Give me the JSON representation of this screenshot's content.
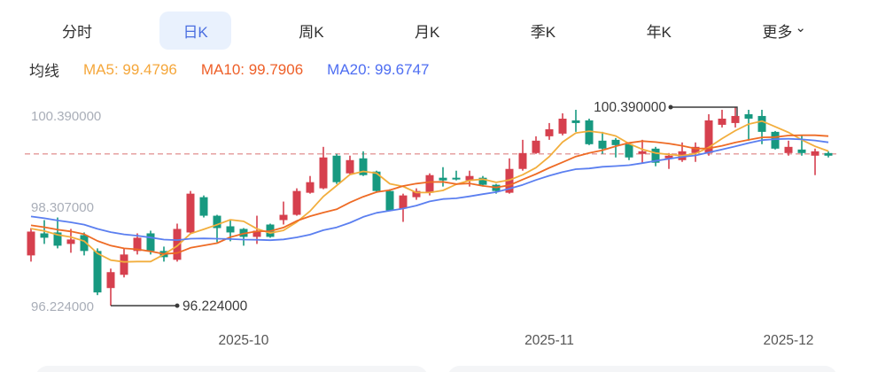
{
  "tabs": {
    "items": [
      {
        "label": "分时",
        "active": false
      },
      {
        "label": "日K",
        "active": true
      },
      {
        "label": "周K",
        "active": false
      },
      {
        "label": "月K",
        "active": false
      },
      {
        "label": "季K",
        "active": false
      },
      {
        "label": "年K",
        "active": false
      },
      {
        "label": "更多",
        "active": false
      }
    ],
    "active_bg": "#e9f1fd",
    "active_color": "#4a6ee0"
  },
  "icons": {
    "chevron_down": "⌄"
  },
  "legend": {
    "title": "均线",
    "ma5": {
      "label": "MA5: 99.4796",
      "color": "#f5a73b"
    },
    "ma10": {
      "label": "MA10: 99.7906",
      "color": "#ee5f28"
    },
    "ma20": {
      "label": "MA20: 99.6747",
      "color": "#4e6ef2"
    }
  },
  "chart_data": {
    "type": "candlestick",
    "up_color": "#d6404e",
    "down_color": "#179980",
    "axis_label_color": "#a9aeb8",
    "x_label_color": "#555555",
    "annotation_color": "#3a3a3a",
    "grid": false,
    "ylim": [
      95.9,
      100.75
    ],
    "y_ticks": [
      {
        "label": "100.390000",
        "value": 100.39
      },
      {
        "label": "98.307000",
        "value": 98.307
      },
      {
        "label": "96.224000",
        "value": 96.224
      }
    ],
    "x_ticks": [
      {
        "label": "2025-10",
        "index": 16
      },
      {
        "label": "2025-11",
        "index": 39
      },
      {
        "label": "2025-12",
        "index": 57
      }
    ],
    "reference_line": {
      "value": 99.409,
      "style": "dashed",
      "color": "#e6a0a0"
    },
    "annotations": [
      {
        "type": "high",
        "label": "100.390000",
        "value": 100.39,
        "candle_index": 53
      },
      {
        "type": "low",
        "label": "96.224000",
        "value": 96.224,
        "candle_index": 6
      }
    ],
    "ma": {
      "windows": [
        5,
        10,
        20
      ],
      "colors": {
        "ma5": "#f2ae3d",
        "ma10": "#ee6b25",
        "ma20": "#5b7ff0"
      },
      "pre_closes": [
        98.45,
        98.42,
        98.4,
        98.38,
        98.35,
        98.3,
        98.28,
        98.25,
        98.2,
        98.15,
        98.1,
        98.05,
        98.0,
        97.98,
        97.95,
        97.92,
        97.9,
        97.88,
        97.85,
        97.8
      ]
    },
    "candles": [
      [
        97.279,
        97.853,
        97.149,
        97.779
      ],
      [
        97.742,
        98.02,
        97.52,
        97.65
      ],
      [
        97.761,
        98.075,
        97.427,
        97.483
      ],
      [
        97.52,
        97.835,
        97.335,
        97.613
      ],
      [
        97.705,
        97.761,
        97.279,
        97.372
      ],
      [
        97.372,
        97.427,
        96.446,
        96.502
      ],
      [
        96.594,
        97.002,
        96.224,
        96.928
      ],
      [
        96.872,
        97.427,
        96.817,
        97.298
      ],
      [
        97.372,
        97.742,
        97.298,
        97.65
      ],
      [
        97.742,
        97.798,
        97.298,
        97.372
      ],
      [
        97.372,
        97.464,
        97.149,
        97.242
      ],
      [
        97.187,
        97.946,
        97.149,
        97.835
      ],
      [
        97.761,
        98.631,
        97.742,
        98.575
      ],
      [
        98.501,
        98.538,
        98.075,
        98.112
      ],
      [
        98.112,
        98.131,
        97.557,
        97.853
      ],
      [
        97.89,
        98.02,
        97.576,
        97.761
      ],
      [
        97.835,
        97.853,
        97.483,
        97.668
      ],
      [
        97.668,
        98.112,
        97.52,
        97.798
      ],
      [
        97.927,
        97.946,
        97.65,
        97.668
      ],
      [
        98.02,
        98.409,
        97.927,
        98.131
      ],
      [
        98.131,
        98.687,
        98.112,
        98.631
      ],
      [
        98.594,
        98.946,
        98.575,
        98.816
      ],
      [
        98.687,
        99.557,
        98.668,
        99.335
      ],
      [
        99.372,
        99.409,
        98.779,
        98.816
      ],
      [
        99.001,
        99.372,
        98.964,
        99.279
      ],
      [
        99.316,
        99.464,
        98.946,
        98.964
      ],
      [
        99.038,
        99.057,
        98.594,
        98.631
      ],
      [
        98.631,
        98.668,
        98.205,
        98.224
      ],
      [
        98.261,
        98.575,
        97.983,
        98.538
      ],
      [
        98.501,
        98.687,
        98.446,
        98.631
      ],
      [
        98.594,
        99.001,
        98.538,
        98.964
      ],
      [
        98.909,
        99.131,
        98.724,
        98.853
      ],
      [
        98.909,
        99.057,
        98.853,
        98.872
      ],
      [
        98.853,
        99.057,
        98.724,
        98.946
      ],
      [
        98.909,
        98.946,
        98.724,
        98.761
      ],
      [
        98.761,
        98.779,
        98.575,
        98.631
      ],
      [
        98.594,
        99.316,
        98.575,
        99.094
      ],
      [
        99.094,
        99.705,
        99.057,
        99.427
      ],
      [
        99.427,
        99.779,
        99.409,
        99.687
      ],
      [
        99.779,
        100.057,
        99.705,
        99.927
      ],
      [
        99.835,
        100.261,
        99.798,
        100.149
      ],
      [
        100.113,
        100.335,
        99.872,
        100.057
      ],
      [
        100.113,
        100.149,
        99.594,
        99.613
      ],
      [
        99.687,
        99.872,
        99.409,
        99.52
      ],
      [
        99.705,
        99.742,
        99.335,
        99.594
      ],
      [
        99.613,
        99.65,
        99.279,
        99.335
      ],
      [
        99.409,
        99.705,
        99.224,
        99.464
      ],
      [
        99.52,
        99.557,
        99.15,
        99.224
      ],
      [
        99.316,
        99.427,
        99.094,
        99.372
      ],
      [
        99.279,
        99.65,
        99.242,
        99.464
      ],
      [
        99.427,
        99.65,
        99.242,
        99.557
      ],
      [
        99.427,
        100.242,
        99.372,
        100.113
      ],
      [
        100.02,
        100.335,
        99.964,
        100.149
      ],
      [
        100.057,
        100.39,
        99.964,
        100.205
      ],
      [
        100.242,
        100.335,
        99.687,
        100.149
      ],
      [
        100.205,
        100.335,
        99.613,
        99.872
      ],
      [
        99.872,
        99.89,
        99.501,
        99.52
      ],
      [
        99.427,
        99.687,
        99.372,
        99.557
      ],
      [
        99.501,
        99.798,
        99.372,
        99.427
      ],
      [
        99.372,
        99.52,
        98.964,
        99.464
      ],
      [
        99.427,
        99.464,
        99.335,
        99.372
      ]
    ]
  }
}
